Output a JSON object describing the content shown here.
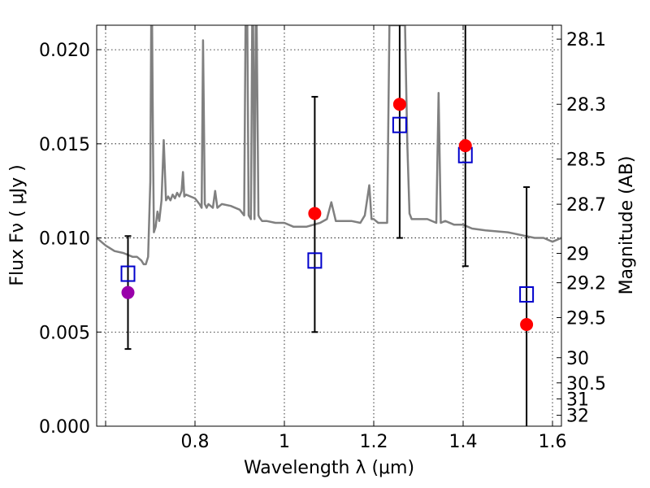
{
  "chart_data": {
    "type": "scatter",
    "xlabel": "Wavelength  λ (μm)",
    "ylabel": "Flux  Fν  ( μJy )",
    "y2label": "Magnitude (AB)",
    "xlim": [
      0.58,
      1.62
    ],
    "ylim": [
      0.0,
      0.0213
    ],
    "grid": true,
    "x_ticks": [
      {
        "value": 0.6,
        "label": ""
      },
      {
        "value": 0.8,
        "label": "0.8"
      },
      {
        "value": 1.0,
        "label": "1"
      },
      {
        "value": 1.2,
        "label": "1.2"
      },
      {
        "value": 1.4,
        "label": "1.4"
      },
      {
        "value": 1.6,
        "label": "1.6"
      }
    ],
    "y_ticks": [
      {
        "value": 0.0,
        "label": "0.000"
      },
      {
        "value": 0.005,
        "label": "0.005"
      },
      {
        "value": 0.01,
        "label": "0.010"
      },
      {
        "value": 0.015,
        "label": "0.015"
      },
      {
        "value": 0.02,
        "label": "0.020"
      }
    ],
    "y2_ticks": [
      {
        "flux": 0.02056,
        "label": "28.1"
      },
      {
        "flux": 0.0171,
        "label": "28.3"
      },
      {
        "flux": 0.01419,
        "label": "28.5"
      },
      {
        "flux": 0.01179,
        "label": "28.7"
      },
      {
        "flux": 0.00918,
        "label": "29"
      },
      {
        "flux": 0.00762,
        "label": "29.2"
      },
      {
        "flux": 0.00577,
        "label": "29.5"
      },
      {
        "flux": 0.00364,
        "label": "30"
      },
      {
        "flux": 0.0023,
        "label": "30.5"
      },
      {
        "flux": 0.00145,
        "label": "31"
      },
      {
        "flux": 0.00058,
        "label": "32"
      }
    ],
    "series": [
      {
        "kind": "line",
        "color": "#808080",
        "x": [
          0.58,
          0.6,
          0.62,
          0.64,
          0.66,
          0.67,
          0.68,
          0.685,
          0.69,
          0.695,
          0.7,
          0.702,
          0.704,
          0.706,
          0.708,
          0.712,
          0.716,
          0.72,
          0.725,
          0.73,
          0.735,
          0.74,
          0.745,
          0.75,
          0.755,
          0.76,
          0.765,
          0.77,
          0.773,
          0.776,
          0.78,
          0.79,
          0.8,
          0.81,
          0.815,
          0.818,
          0.822,
          0.826,
          0.83,
          0.84,
          0.845,
          0.85,
          0.86,
          0.88,
          0.9,
          0.91,
          0.913,
          0.917,
          0.92,
          0.925,
          0.928,
          0.93,
          0.933,
          0.936,
          0.938,
          0.942,
          0.944,
          0.95,
          0.96,
          0.98,
          1.0,
          1.02,
          1.05,
          1.08,
          1.095,
          1.105,
          1.115,
          1.13,
          1.15,
          1.17,
          1.18,
          1.19,
          1.195,
          1.2,
          1.21,
          1.23,
          1.235,
          1.24,
          1.25,
          1.27,
          1.275,
          1.28,
          1.285,
          1.29,
          1.295,
          1.3,
          1.32,
          1.34,
          1.345,
          1.35,
          1.36,
          1.38,
          1.4,
          1.42,
          1.45,
          1.5,
          1.54,
          1.56,
          1.58,
          1.6,
          1.62
        ],
        "y": [
          0.01,
          0.0096,
          0.0093,
          0.0092,
          0.009,
          0.009,
          0.0088,
          0.0086,
          0.0086,
          0.009,
          0.013,
          0.0213,
          0.0213,
          0.015,
          0.0103,
          0.0106,
          0.0114,
          0.0109,
          0.012,
          0.0152,
          0.012,
          0.0122,
          0.012,
          0.0123,
          0.0121,
          0.0124,
          0.0122,
          0.0125,
          0.0135,
          0.0122,
          0.0123,
          0.0122,
          0.0121,
          0.0118,
          0.0116,
          0.0205,
          0.0118,
          0.0116,
          0.0118,
          0.0116,
          0.0125,
          0.0116,
          0.0118,
          0.0117,
          0.0115,
          0.0112,
          0.0213,
          0.0213,
          0.0112,
          0.011,
          0.0213,
          0.0213,
          0.011,
          0.0213,
          0.0213,
          0.0112,
          0.0111,
          0.0109,
          0.0109,
          0.0108,
          0.0108,
          0.0106,
          0.0106,
          0.0108,
          0.011,
          0.0119,
          0.0109,
          0.0109,
          0.0109,
          0.0108,
          0.0112,
          0.0128,
          0.011,
          0.011,
          0.0108,
          0.0108,
          0.0213,
          0.0213,
          0.0213,
          0.0213,
          0.015,
          0.0113,
          0.011,
          0.011,
          0.011,
          0.011,
          0.011,
          0.0108,
          0.0177,
          0.0108,
          0.0109,
          0.0107,
          0.0107,
          0.0105,
          0.0104,
          0.0103,
          0.0101,
          0.01,
          0.01,
          0.0098,
          0.01
        ]
      },
      {
        "kind": "errorbar",
        "color": "#000000",
        "x": [
          0.65,
          1.068,
          1.258,
          1.405,
          1.542
        ],
        "y_low": [
          0.0041,
          0.005,
          0.01,
          0.0085,
          0.0
        ],
        "y_high": [
          0.0101,
          0.0175,
          0.0213,
          0.0213,
          0.0127
        ]
      },
      {
        "kind": "square",
        "color": "#0000cc",
        "x": [
          0.65,
          1.068,
          1.258,
          1.405,
          1.542
        ],
        "y": [
          0.0081,
          0.0088,
          0.016,
          0.0144,
          0.007
        ]
      },
      {
        "kind": "circle",
        "color": "#ff0000",
        "x": [
          1.068,
          1.258,
          1.405,
          1.542
        ],
        "y": [
          0.0113,
          0.0171,
          0.0149,
          0.0054
        ]
      },
      {
        "kind": "circle",
        "color": "#9900aa",
        "x": [
          0.65
        ],
        "y": [
          0.0071
        ]
      }
    ]
  }
}
